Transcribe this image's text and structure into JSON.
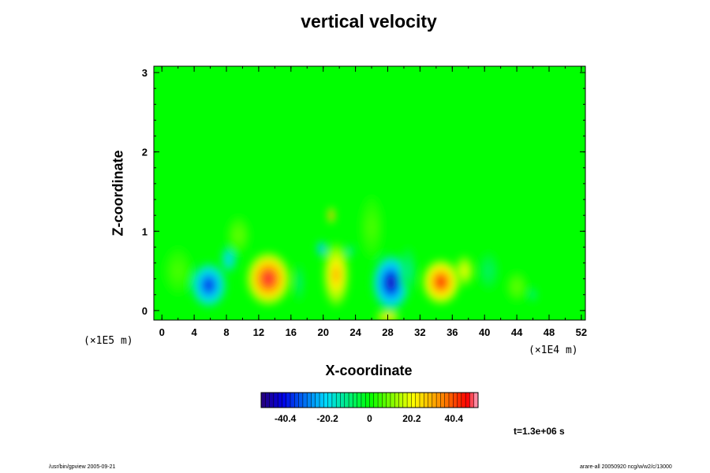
{
  "chart_data": {
    "type": "heatmap",
    "title": "vertical velocity",
    "xlabel": "X-coordinate",
    "ylabel": "Z-coordinate",
    "x_scale_label": "(×1E4 m)",
    "y_scale_label": "(×1E5 m)",
    "x_ticks": [
      0,
      4,
      8,
      12,
      16,
      20,
      24,
      28,
      32,
      36,
      40,
      44,
      48,
      52
    ],
    "y_ticks": [
      0,
      1,
      2,
      3
    ],
    "xlim": [
      -1,
      52.5
    ],
    "ylim": [
      -0.12,
      3.08
    ],
    "colorbar": {
      "ticks": [
        "-40.4",
        "-20.2",
        "0",
        "20.2",
        "40.4"
      ],
      "range": [
        -52,
        52
      ]
    },
    "features": [
      {
        "x": 5.8,
        "z": 0.32,
        "value": -38,
        "rx": 2.2,
        "rz": 0.28
      },
      {
        "x": 8.3,
        "z": 0.65,
        "value": -22,
        "rx": 1.0,
        "rz": 0.18
      },
      {
        "x": 13.2,
        "z": 0.4,
        "value": 48,
        "rx": 2.7,
        "rz": 0.33
      },
      {
        "x": 17.0,
        "z": 0.35,
        "value": -10,
        "rx": 0.6,
        "rz": 0.25
      },
      {
        "x": 21.6,
        "z": 0.45,
        "value": 30,
        "rx": 1.6,
        "rz": 0.4
      },
      {
        "x": 19.8,
        "z": 0.78,
        "value": -30,
        "rx": 0.6,
        "rz": 0.1
      },
      {
        "x": 21.0,
        "z": 1.2,
        "value": 46,
        "rx": 0.4,
        "rz": 0.1
      },
      {
        "x": 23.3,
        "z": 0.75,
        "value": -20,
        "rx": 0.4,
        "rz": 0.08
      },
      {
        "x": 28.4,
        "z": 0.35,
        "value": -45,
        "rx": 2.3,
        "rz": 0.35
      },
      {
        "x": 30.5,
        "z": 0.5,
        "value": -12,
        "rx": 1.0,
        "rz": 0.3
      },
      {
        "x": 34.6,
        "z": 0.36,
        "value": 44,
        "rx": 2.3,
        "rz": 0.28
      },
      {
        "x": 37.5,
        "z": 0.5,
        "value": 20,
        "rx": 1.2,
        "rz": 0.2
      },
      {
        "x": 40.5,
        "z": 0.5,
        "value": -8,
        "rx": 1.3,
        "rz": 0.25
      },
      {
        "x": 44.0,
        "z": 0.3,
        "value": 8,
        "rx": 1.4,
        "rz": 0.2
      },
      {
        "x": 46.0,
        "z": 0.2,
        "value": -12,
        "rx": 0.5,
        "rz": 0.1
      },
      {
        "x": 28.0,
        "z": -0.08,
        "value": 30,
        "rx": 1.5,
        "rz": 0.07
      },
      {
        "x": 9.5,
        "z": 0.95,
        "value": 8,
        "rx": 1.5,
        "rz": 0.25
      },
      {
        "x": 2.0,
        "z": 0.5,
        "value": 6,
        "rx": 1.8,
        "rz": 0.3
      },
      {
        "x": 26.0,
        "z": 1.05,
        "value": 6,
        "rx": 1.5,
        "rz": 0.4
      }
    ],
    "annotation": "t=1.3e+06 s"
  },
  "footer": {
    "left": "/usr/bin/gpview 2005-09-21",
    "right": "arare-all 20050920 ncg/w/w2/c/13000"
  }
}
